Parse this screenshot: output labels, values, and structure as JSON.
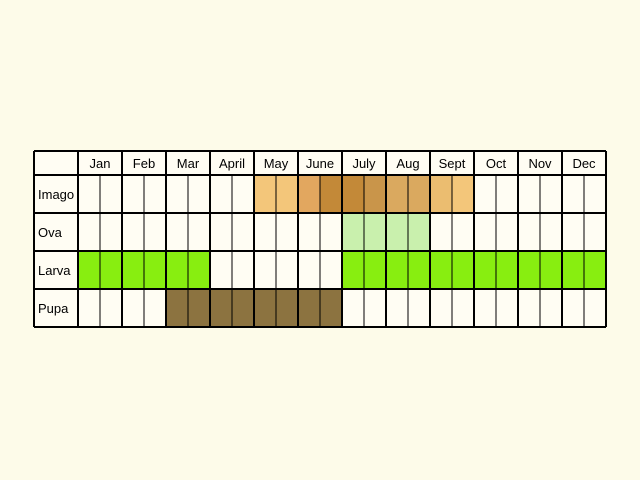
{
  "months": [
    "Jan",
    "Feb",
    "Mar",
    "April",
    "May",
    "June",
    "July",
    "Aug",
    "Sept",
    "Oct",
    "Nov",
    "Dec"
  ],
  "stages": [
    {
      "label": "Imago",
      "fills": [
        {
          "start": 8,
          "end": 10,
          "color": "#f3c67a"
        },
        {
          "start": 10,
          "end": 11,
          "color": "#e2a75f"
        },
        {
          "start": 11,
          "end": 13,
          "color": "#c38938"
        },
        {
          "start": 13,
          "end": 14,
          "color": "#c9954a"
        },
        {
          "start": 14,
          "end": 16,
          "color": "#daa95f"
        },
        {
          "start": 16,
          "end": 17,
          "color": "#ebbd70"
        },
        {
          "start": 17,
          "end": 18,
          "color": "#f3c67a"
        }
      ]
    },
    {
      "label": "Ova",
      "fills": [
        {
          "start": 12,
          "end": 16,
          "color": "#c9f0ad"
        }
      ]
    },
    {
      "label": "Larva",
      "fills": [
        {
          "start": 0,
          "end": 6,
          "color": "#88ee10"
        },
        {
          "start": 12,
          "end": 24,
          "color": "#88ee10"
        }
      ]
    },
    {
      "label": "Pupa",
      "fills": [
        {
          "start": 4,
          "end": 12,
          "color": "#8c7340"
        }
      ]
    }
  ],
  "colors": {
    "background": "#fdfbe9",
    "cell": "#fffdf3",
    "grid": "#000000"
  }
}
